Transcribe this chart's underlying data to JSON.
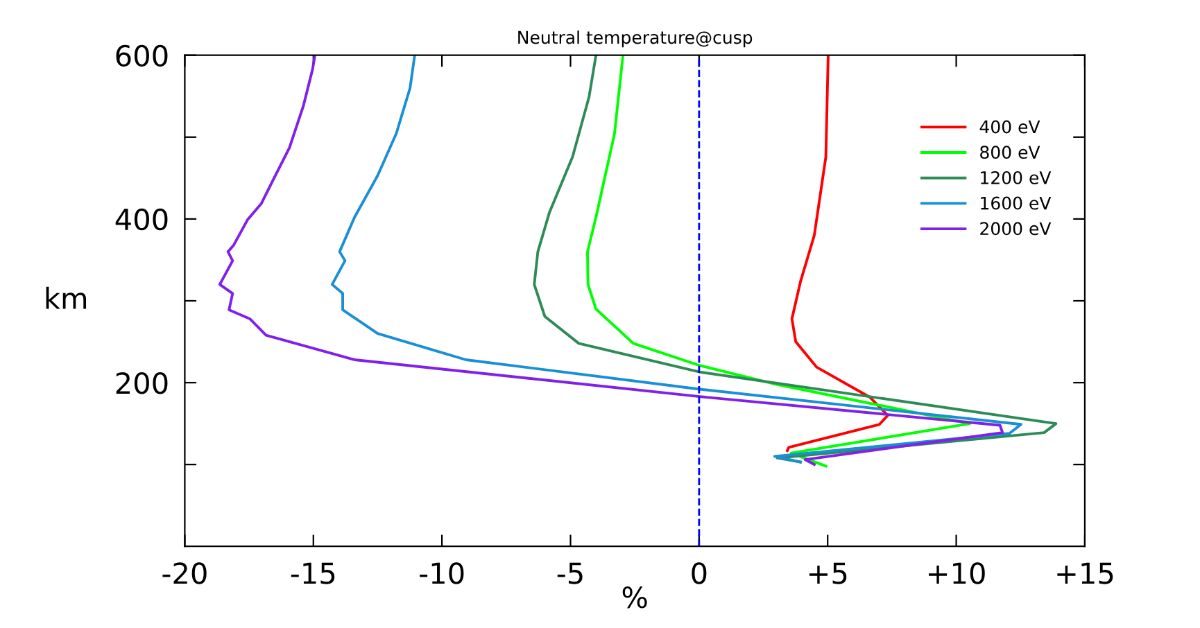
{
  "chart_data": {
    "type": "line",
    "title": "Neutral temperature@cusp",
    "xlabel": "%",
    "ylabel": "km",
    "xlim": [
      -20,
      15
    ],
    "xticks": [
      -20,
      -15,
      -10,
      -5,
      0,
      {
        "value": 5,
        "label": "+5"
      },
      {
        "value": 10,
        "label": "+10"
      },
      {
        "value": 15,
        "label": "+15"
      }
    ],
    "ylim": [
      0,
      600
    ],
    "yticks": [
      {
        "value": 100,
        "label": null
      },
      200,
      {
        "value": 300,
        "label": null
      },
      400,
      {
        "value": 500,
        "label": null
      },
      600
    ],
    "grid": false,
    "legend": "top right",
    "line_style": "solid",
    "marker": "none",
    "ref_lines": [
      {
        "axis": "x",
        "value": 0,
        "color": "#0000ff",
        "line_style": "dashed"
      }
    ],
    "series": [
      {
        "name": "400 eV",
        "color": "#ff0000",
        "x": [
          5.02,
          4.93,
          4.48,
          3.94,
          3.61,
          3.76,
          4.57,
          6.65,
          7.34,
          7.01,
          3.49,
          3.43
        ],
        "values": [
          600,
          476,
          380,
          323,
          278,
          250,
          219,
          182,
          160,
          149,
          121,
          117
        ]
      },
      {
        "name": "800 eV",
        "color": "#00ff00",
        "x": [
          -2.96,
          -3.29,
          -4.01,
          -4.34,
          -4.32,
          -4.01,
          -2.56,
          0.02,
          2.85,
          10.53,
          3.58,
          4.93
        ],
        "values": [
          600,
          504,
          402,
          360,
          320,
          290,
          248,
          221,
          199,
          150,
          114,
          98
        ]
      },
      {
        "name": "1200 eV",
        "color": "#2e8b57",
        "x": [
          -4.01,
          -4.28,
          -4.92,
          -5.82,
          -6.27,
          -6.41,
          -6.0,
          -4.68,
          0.02,
          13.88,
          13.42,
          3.04,
          3.94
        ],
        "values": [
          600,
          549,
          476,
          408,
          360,
          320,
          281,
          248,
          213,
          150,
          139,
          108,
          103
        ]
      },
      {
        "name": "1600 eV",
        "color": "#1a8fd6",
        "x": [
          -11.06,
          -11.24,
          -11.78,
          -12.5,
          -13.4,
          -13.98,
          -13.77,
          -14.27,
          -13.86,
          -13.86,
          -12.5,
          -9.07,
          0.02,
          12.52,
          12.07,
          2.94,
          3.94
        ],
        "values": [
          600,
          560,
          504,
          453,
          402,
          360,
          349,
          320,
          309,
          289,
          260,
          228,
          192,
          149,
          138,
          110,
          103
        ]
      },
      {
        "name": "2000 eV",
        "color": "#8020e8",
        "x": [
          -14.94,
          -15.03,
          -15.39,
          -15.93,
          -16.48,
          -17.02,
          -17.56,
          -18.1,
          -18.32,
          -18.14,
          -18.64,
          -18.14,
          -18.28,
          -17.47,
          -16.84,
          -13.4,
          0.02,
          11.7,
          11.8,
          4.12,
          4.48
        ],
        "values": [
          600,
          583,
          538,
          487,
          453,
          419,
          399,
          368,
          360,
          349,
          320,
          309,
          289,
          278,
          258,
          228,
          183,
          148,
          139,
          106,
          100
        ]
      }
    ]
  }
}
